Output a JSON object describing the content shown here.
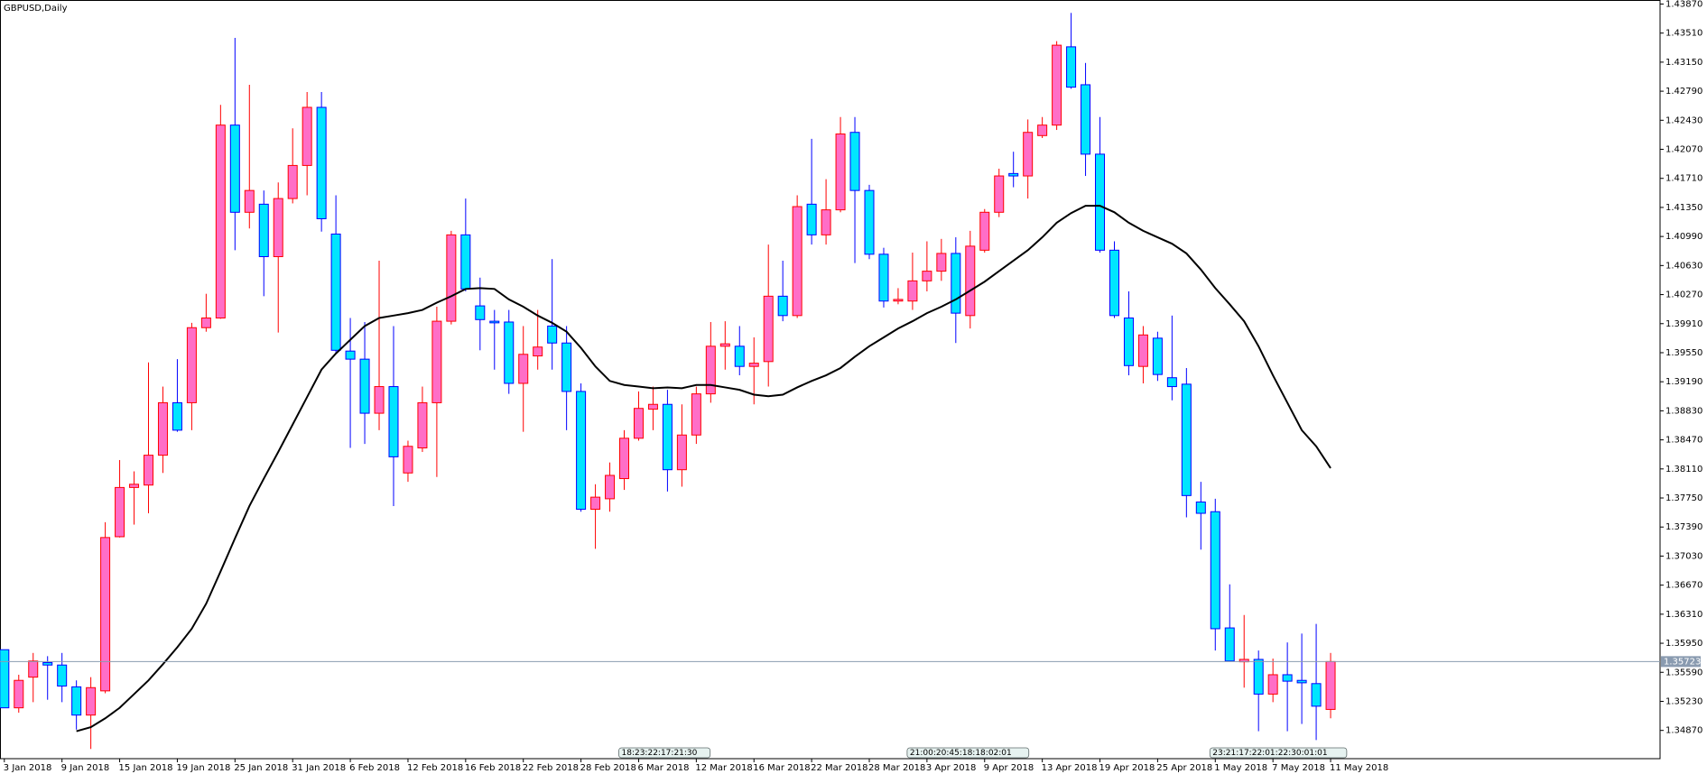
{
  "chart_data": {
    "type": "candlestick",
    "title": "GBPUSD,Daily",
    "categories": [
      "3 Jan 2018",
      null,
      null,
      null,
      "9 Jan 2018",
      null,
      null,
      null,
      "15 Jan 2018",
      null,
      null,
      null,
      "19 Jan 2018",
      null,
      null,
      null,
      "25 Jan 2018",
      null,
      null,
      null,
      "31 Jan 2018",
      null,
      null,
      null,
      "6 Feb 2018",
      null,
      null,
      null,
      "12 Feb 2018",
      null,
      null,
      null,
      "16 Feb 2018",
      null,
      null,
      null,
      "22 Feb 2018",
      null,
      null,
      null,
      "28 Feb 2018",
      null,
      null,
      null,
      "6 Mar 2018",
      null,
      null,
      null,
      "12 Mar 2018",
      null,
      null,
      null,
      "16 Mar 2018",
      null,
      null,
      null,
      "22 Mar 2018",
      null,
      null,
      null,
      "28 Mar 2018",
      null,
      null,
      null,
      "3 Apr 2018",
      null,
      null,
      null,
      "9 Apr 2018",
      null,
      null,
      null,
      "13 Apr 2018",
      null,
      null,
      null,
      "19 Apr 2018",
      null,
      null,
      null,
      "25 Apr 2018",
      null,
      null,
      null,
      "1 May 2018",
      null,
      null,
      null,
      "7 May 2018",
      null,
      null,
      null,
      "11 May 2018"
    ],
    "open": [
      1.3587,
      1.3515,
      1.3553,
      1.3571,
      1.3568,
      1.3541,
      1.3506,
      1.3536,
      1.3727,
      1.3788,
      1.3791,
      1.3828,
      1.3893,
      1.3893,
      1.3986,
      1.3998,
      1.4237,
      1.4129,
      1.4139,
      1.4074,
      1.4146,
      1.4187,
      1.4259,
      1.4102,
      1.3957,
      1.3947,
      1.388,
      1.3913,
      1.3806,
      1.3837,
      1.3893,
      1.3994,
      1.4101,
      1.4013,
      1.3994,
      1.3993,
      1.3917,
      1.3951,
      1.3988,
      1.3967,
      1.3907,
      1.3761,
      1.3774,
      1.3799,
      1.3849,
      1.3885,
      1.3891,
      1.381,
      1.3853,
      1.3904,
      1.3963,
      1.3963,
      1.3938,
      1.3944,
      1.4025,
      1.4001,
      1.4139,
      1.4101,
      1.4132,
      1.4228,
      1.4156,
      1.4077,
      1.4019,
      1.4019,
      1.4044,
      1.4056,
      1.4078,
      1.4001,
      1.4082,
      1.4129,
      1.4177,
      1.4174,
      1.4224,
      1.4237,
      1.4334,
      1.4287,
      1.4201,
      1.4082,
      1.3998,
      1.3938,
      1.3973,
      1.3924,
      1.3916,
      1.377,
      1.3758,
      1.3614,
      1.3572,
      1.3575,
      1.3532,
      1.3556,
      1.3549,
      1.3545,
      1.3513
    ],
    "high": [
      1.3587,
      1.3556,
      1.3583,
      1.3579,
      1.3583,
      1.3549,
      1.3553,
      1.3745,
      1.3822,
      1.3808,
      1.3943,
      1.3913,
      1.3947,
      1.3992,
      1.4028,
      1.4262,
      1.4345,
      1.4287,
      1.4156,
      1.4166,
      1.4233,
      1.4278,
      1.4278,
      1.415,
      1.3998,
      1.3993,
      1.4069,
      1.3988,
      1.3846,
      1.3913,
      1.4012,
      1.4106,
      1.4146,
      1.4048,
      1.4008,
      1.4008,
      1.3988,
      1.4008,
      1.4071,
      1.3988,
      1.3917,
      1.3792,
      1.3819,
      1.3859,
      1.3907,
      1.3913,
      1.3909,
      1.3891,
      1.3913,
      1.3993,
      1.3994,
      1.3988,
      1.3974,
      1.4089,
      1.4069,
      1.415,
      1.422,
      1.417,
      1.4247,
      1.4247,
      1.4163,
      1.4085,
      1.4035,
      1.4079,
      1.4093,
      1.4096,
      1.4098,
      1.4106,
      1.4133,
      1.4183,
      1.4204,
      1.4244,
      1.4247,
      1.4341,
      1.4376,
      1.4314,
      1.4247,
      1.4093,
      1.4031,
      1.3988,
      1.3981,
      1.4001,
      1.3936,
      1.3795,
      1.3774,
      1.3668,
      1.363,
      1.3586,
      1.3576,
      1.3596,
      1.3607,
      1.3619,
      1.3583
    ],
    "low": [
      1.3515,
      1.3509,
      1.3522,
      1.3525,
      1.3522,
      1.3488,
      1.3464,
      1.3533,
      1.3726,
      1.3742,
      1.3756,
      1.3806,
      1.3857,
      1.3859,
      1.3981,
      1.3997,
      1.4082,
      1.4109,
      1.4025,
      1.398,
      1.414,
      1.415,
      1.4105,
      1.3954,
      1.3837,
      1.3842,
      1.3859,
      1.3765,
      1.3795,
      1.3832,
      1.3801,
      1.399,
      1.4031,
      1.3958,
      1.3934,
      1.3904,
      1.3857,
      1.3934,
      1.3934,
      1.3859,
      1.3758,
      1.3712,
      1.3758,
      1.3785,
      1.3846,
      1.3859,
      1.3783,
      1.3789,
      1.3842,
      1.3893,
      1.3934,
      1.3927,
      1.3891,
      1.3913,
      1.3994,
      1.3998,
      1.4089,
      1.4089,
      1.4129,
      1.4066,
      1.4071,
      1.4011,
      1.4015,
      1.4008,
      1.4031,
      1.4044,
      1.3967,
      1.3985,
      1.4079,
      1.4123,
      1.416,
      1.4146,
      1.4221,
      1.4231,
      1.4282,
      1.4174,
      1.4079,
      1.3998,
      1.3927,
      1.3917,
      1.392,
      1.3896,
      1.3751,
      1.3711,
      1.3586,
      1.3573,
      1.354,
      1.3486,
      1.3522,
      1.3486,
      1.3495,
      1.3475,
      1.3502
    ],
    "close": [
      1.3515,
      1.3549,
      1.3573,
      1.3568,
      1.3542,
      1.3506,
      1.354,
      1.3726,
      1.3788,
      1.3792,
      1.3828,
      1.3893,
      1.3859,
      1.3986,
      1.3998,
      1.4237,
      1.4129,
      1.4156,
      1.4074,
      1.4146,
      1.4187,
      1.4259,
      1.4121,
      1.3958,
      1.3947,
      1.388,
      1.3913,
      1.3826,
      1.3839,
      1.3893,
      1.3994,
      1.4101,
      1.4034,
      1.3996,
      1.3992,
      1.3917,
      1.3953,
      1.3962,
      1.3967,
      1.3907,
      1.3761,
      1.3776,
      1.3803,
      1.3849,
      1.3886,
      1.3891,
      1.381,
      1.3853,
      1.3904,
      1.3963,
      1.3966,
      1.3938,
      1.3942,
      1.4025,
      1.4001,
      1.4136,
      1.4101,
      1.4132,
      1.4226,
      1.4156,
      1.4077,
      1.4019,
      1.4021,
      1.4044,
      1.4056,
      1.4078,
      1.4004,
      1.4087,
      1.4129,
      1.4174,
      1.4174,
      1.4228,
      1.4237,
      1.4336,
      1.4284,
      1.4201,
      1.4082,
      1.4001,
      1.3939,
      1.3977,
      1.3928,
      1.3913,
      1.3778,
      1.3756,
      1.3613,
      1.3573,
      1.3575,
      1.3532,
      1.3556,
      1.3548,
      1.3546,
      1.3517,
      1.35723
    ],
    "colors": {
      "up_body": "#ff6ec7",
      "up_wick": "#ff0000",
      "down_body": "#00e5ff",
      "down_wick": "#0000ff"
    },
    "overlay": {
      "color": "#000000",
      "values": [
        null,
        null,
        null,
        null,
        null,
        1.3486,
        1.3491,
        1.3502,
        1.3515,
        1.3532,
        1.3549,
        1.3569,
        1.359,
        1.3613,
        1.3644,
        1.3684,
        1.3725,
        1.3765,
        1.3799,
        1.3832,
        1.3866,
        1.39,
        1.3934,
        1.3954,
        1.3971,
        1.3988,
        1.3998,
        1.4001,
        1.4004,
        1.4008,
        1.4017,
        1.4025,
        1.4034,
        1.4035,
        1.4034,
        1.4021,
        1.4012,
        1.4001,
        1.3992,
        1.3981,
        1.3961,
        1.3938,
        1.392,
        1.3915,
        1.3913,
        1.3911,
        1.3912,
        1.3911,
        1.3915,
        1.3915,
        1.3912,
        1.3909,
        1.3903,
        1.3901,
        1.3903,
        1.3912,
        1.392,
        1.3927,
        1.3936,
        1.395,
        1.3963,
        1.3974,
        1.3985,
        1.3994,
        1.4004,
        1.4012,
        1.4021,
        1.4032,
        1.4043,
        1.4056,
        1.4069,
        1.4082,
        1.4098,
        1.4116,
        1.4128,
        1.4137,
        1.4137,
        1.4129,
        1.4116,
        1.4106,
        1.4098,
        1.409,
        1.4078,
        1.4058,
        1.4035,
        1.4015,
        1.3994,
        1.3963,
        1.3927,
        1.3893,
        1.3859,
        1.3839,
        1.3812
      ]
    },
    "ylim": [
      1.3452,
      1.4392
    ],
    "yticks": [
      {
        "value": 1.4387,
        "label": "1.43870"
      },
      {
        "value": 1.4351,
        "label": "1.43510"
      },
      {
        "value": 1.4315,
        "label": "1.43150"
      },
      {
        "value": 1.4279,
        "label": "1.42790"
      },
      {
        "value": 1.4243,
        "label": "1.42430"
      },
      {
        "value": 1.4207,
        "label": "1.42070"
      },
      {
        "value": 1.4171,
        "label": "1.41710"
      },
      {
        "value": 1.4135,
        "label": "1.41350"
      },
      {
        "value": 1.4099,
        "label": "1.40990"
      },
      {
        "value": 1.4063,
        "label": "1.40630"
      },
      {
        "value": 1.4027,
        "label": "1.40270"
      },
      {
        "value": 1.3991,
        "label": "1.39910"
      },
      {
        "value": 1.3955,
        "label": "1.39550"
      },
      {
        "value": 1.3919,
        "label": "1.39190"
      },
      {
        "value": 1.3883,
        "label": "1.38830"
      },
      {
        "value": 1.3847,
        "label": "1.38470"
      },
      {
        "value": 1.3811,
        "label": "1.38110"
      },
      {
        "value": 1.3775,
        "label": "1.37750"
      },
      {
        "value": 1.3739,
        "label": "1.37390"
      },
      {
        "value": 1.3703,
        "label": "1.37030"
      },
      {
        "value": 1.3667,
        "label": "1.36670"
      },
      {
        "value": 1.3631,
        "label": "1.36310"
      },
      {
        "value": 1.3595,
        "label": "1.35950"
      },
      {
        "value": 1.3559,
        "label": "1.35590"
      },
      {
        "value": 1.3523,
        "label": "1.35230"
      },
      {
        "value": 1.3487,
        "label": "1.34870"
      }
    ],
    "current_price": 1.35723,
    "current_price_color": "#8a9bb0",
    "annotations": [
      "18:23:22:17:21:30",
      "21:00:20:45:18:18:02:01",
      "23:21:17:22:01:22:30:01:01"
    ]
  }
}
